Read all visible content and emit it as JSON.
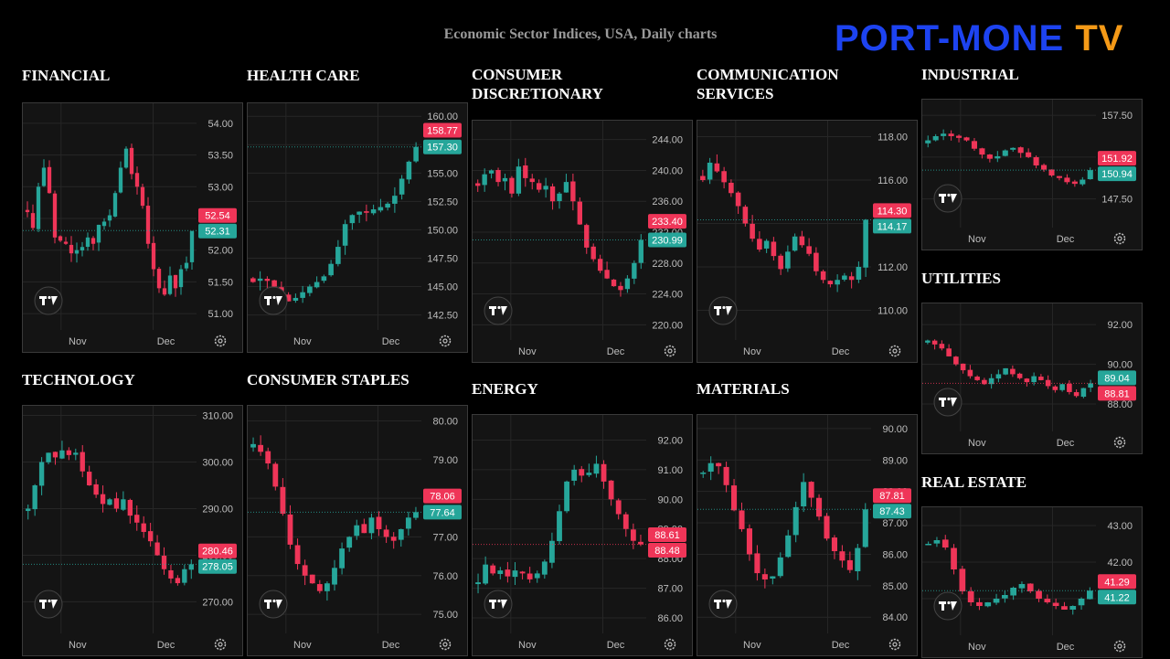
{
  "header": {
    "title": "Economic Sector Indices, USA, Daily charts",
    "logo": {
      "part1": "PORT-MONE",
      "part2": " TV"
    }
  },
  "colors": {
    "up": "#26a69a",
    "down": "#ef3558",
    "background": "#000000",
    "panel": "#141414",
    "grid": "#262626"
  },
  "icons": {
    "brand": "tradingview-logo-icon",
    "settings": "settings-gear-icon"
  },
  "chart_data": [
    {
      "id": "financial",
      "title": "FINANCIAL",
      "type": "candlestick",
      "ylim": [
        50.8,
        54.2
      ],
      "y_ticks": [
        "54.00",
        "53.50",
        "53.00",
        "52.50",
        "52.00",
        "51.50",
        "51.00"
      ],
      "x_ticks": [
        "Nov",
        "Dec"
      ],
      "last_price": 52.31,
      "badges": [
        {
          "text": "52.54",
          "value": 52.54,
          "color": "#ef3558"
        },
        {
          "text": "52.31",
          "value": 52.31,
          "color": "#26a69a"
        }
      ],
      "closes": [
        52.6,
        52.35,
        53.0,
        53.3,
        52.9,
        52.2,
        52.15,
        52.1,
        51.95,
        52.0,
        52.05,
        52.2,
        52.1,
        52.4,
        52.45,
        52.55,
        52.9,
        53.3,
        53.6,
        53.2,
        53.0,
        52.7,
        52.1,
        51.7,
        51.4,
        51.3,
        51.6,
        51.4,
        51.7,
        51.8,
        52.3
      ]
    },
    {
      "id": "health-care",
      "title": "HEALTH CARE",
      "type": "candlestick",
      "ylim": [
        141.5,
        160.5
      ],
      "y_ticks": [
        "160.00",
        "157.50",
        "155.00",
        "152.50",
        "150.00",
        "147.50",
        "145.00",
        "142.50"
      ],
      "x_ticks": [
        "Nov",
        "Dec"
      ],
      "last_price": 157.3,
      "badges": [
        {
          "text": "158.77",
          "value": 158.77,
          "color": "#ef3558"
        },
        {
          "text": "157.30",
          "value": 157.3,
          "color": "#26a69a"
        }
      ],
      "closes": [
        145.4,
        145.7,
        145.5,
        145.0,
        144.3,
        143.7,
        144.0,
        144.5,
        145.0,
        145.4,
        145.9,
        147.0,
        148.5,
        150.5,
        151.3,
        151.6,
        151.5,
        151.8,
        152.0,
        152.3,
        153.0,
        154.5,
        156.0,
        157.3
      ]
    },
    {
      "id": "consumer-discretionary",
      "title": "CONSUMER\nDISCRETIONARY",
      "type": "candlestick",
      "ylim": [
        218.5,
        245.5
      ],
      "y_ticks": [
        "244.00",
        "240.00",
        "236.00",
        "232.00",
        "228.00",
        "224.00",
        "220.00"
      ],
      "x_ticks": [
        "Nov",
        "Dec"
      ],
      "last_price": 230.99,
      "badges": [
        {
          "text": "233.40",
          "value": 233.4,
          "color": "#ef3558"
        },
        {
          "text": "230.99",
          "value": 230.99,
          "color": "#26a69a"
        }
      ],
      "closes": [
        238.0,
        239.5,
        240.0,
        238.5,
        239.0,
        237.0,
        240.5,
        239.0,
        238.5,
        237.5,
        238.0,
        236.0,
        237.0,
        238.5,
        236.0,
        233.0,
        230.0,
        228.5,
        227.0,
        226.0,
        225.0,
        224.5,
        226.0,
        228.0,
        230.99
      ]
    },
    {
      "id": "communication-services",
      "title": "COMMUNICATION\nSERVICES",
      "type": "candlestick",
      "ylim": [
        108.8,
        118.4
      ],
      "y_ticks": [
        "118.00",
        "116.00",
        "114.00",
        "112.00",
        "110.00"
      ],
      "x_ticks": [
        "Nov",
        "Dec"
      ],
      "last_price": 114.17,
      "badges": [
        {
          "text": "114.30",
          "value": 114.3,
          "color": "#ef3558"
        },
        {
          "text": "114.17",
          "value": 114.17,
          "color": "#26a69a"
        }
      ],
      "closes": [
        116.0,
        116.8,
        116.4,
        115.9,
        115.4,
        114.8,
        114.0,
        113.3,
        112.8,
        113.2,
        112.5,
        111.9,
        112.7,
        113.4,
        113.0,
        112.6,
        111.8,
        111.4,
        111.2,
        111.4,
        111.6,
        111.4,
        112.0,
        114.17
      ]
    },
    {
      "id": "industrial",
      "title": "INDUSTRIAL",
      "type": "candlestick",
      "ylim": [
        144.5,
        158.5
      ],
      "y_ticks": [
        "157.50",
        "152.50",
        "147.50"
      ],
      "x_ticks": [
        "Nov",
        "Dec"
      ],
      "last_price": 150.94,
      "badges": [
        {
          "text": "151.92",
          "value": 151.92,
          "color": "#ef3558"
        },
        {
          "text": "150.94",
          "value": 150.94,
          "color": "#26a69a"
        }
      ],
      "closes": [
        154.5,
        155.0,
        155.3,
        155.0,
        154.8,
        154.5,
        153.5,
        152.8,
        152.3,
        152.6,
        153.3,
        153.6,
        153.0,
        152.5,
        151.5,
        151.0,
        150.3,
        150.0,
        149.5,
        149.3,
        149.8,
        150.94
      ]
    },
    {
      "id": "utilities",
      "title": "UTILITIES",
      "type": "candlestick",
      "ylim": [
        86.8,
        92.7
      ],
      "y_ticks": [
        "92.00",
        "90.00",
        "88.00"
      ],
      "x_ticks": [
        "Nov",
        "Dec"
      ],
      "last_price": 89.04,
      "badges": [
        {
          "text": "89.04",
          "value": 89.04,
          "color": "#26a69a"
        },
        {
          "text": "88.81",
          "value": 88.81,
          "color": "#ef3558"
        }
      ],
      "closes": [
        91.2,
        91.0,
        90.8,
        90.4,
        90.0,
        89.7,
        89.4,
        89.2,
        89.0,
        89.3,
        89.5,
        89.8,
        89.5,
        89.3,
        89.1,
        89.4,
        89.2,
        88.9,
        88.7,
        89.0,
        88.6,
        88.4,
        88.8,
        89.04
      ]
    },
    {
      "id": "technology",
      "title": "TECHNOLOGY",
      "type": "candlestick",
      "ylim": [
        264,
        310.5
      ],
      "y_ticks": [
        "310.00",
        "300.00",
        "290.00",
        "280.00",
        "270.00"
      ],
      "x_ticks": [
        "Nov",
        "Dec"
      ],
      "last_price": 278.05,
      "badges": [
        {
          "text": "280.46",
          "value": 280.46,
          "color": "#ef3558"
        },
        {
          "text": "278.05",
          "value": 278.05,
          "color": "#26a69a"
        }
      ],
      "closes": [
        290.0,
        295.0,
        300.0,
        302.0,
        301.0,
        302.5,
        301.5,
        302.0,
        298.0,
        295.0,
        293.0,
        291.0,
        292.0,
        290.0,
        292.0,
        288.5,
        287.0,
        285.0,
        283.0,
        280.0,
        277.0,
        275.0,
        274.0,
        277.0,
        278.05
      ]
    },
    {
      "id": "consumer-staples",
      "title": "CONSUMER STAPLES",
      "type": "candlestick",
      "ylim": [
        74.6,
        80.2
      ],
      "y_ticks": [
        "80.00",
        "79.00",
        "78.00",
        "77.00",
        "76.00",
        "75.00"
      ],
      "x_ticks": [
        "Nov",
        "Dec"
      ],
      "last_price": 77.64,
      "badges": [
        {
          "text": "78.06",
          "value": 78.06,
          "color": "#ef3558"
        },
        {
          "text": "77.64",
          "value": 77.64,
          "color": "#26a69a"
        }
      ],
      "closes": [
        79.4,
        79.2,
        78.9,
        78.3,
        77.6,
        76.8,
        76.3,
        76.0,
        75.8,
        75.6,
        75.8,
        76.2,
        76.7,
        77.0,
        77.3,
        77.1,
        77.5,
        77.2,
        77.0,
        76.9,
        77.2,
        77.5,
        77.64
      ]
    },
    {
      "id": "energy",
      "title": "ENERGY",
      "type": "candlestick",
      "ylim": [
        85.6,
        92.6
      ],
      "y_ticks": [
        "92.00",
        "91.00",
        "90.00",
        "89.00",
        "88.00",
        "87.00",
        "86.00"
      ],
      "x_ticks": [
        "Nov",
        "Dec"
      ],
      "last_price": 88.48,
      "badges": [
        {
          "text": "88.61",
          "value": 88.61,
          "color": "#ef3558"
        },
        {
          "text": "88.48",
          "value": 88.48,
          "color": "#ef3558"
        }
      ],
      "closes": [
        87.2,
        87.8,
        87.5,
        87.6,
        87.4,
        87.6,
        87.5,
        87.3,
        87.5,
        87.9,
        88.6,
        89.6,
        90.6,
        91.0,
        90.8,
        90.9,
        91.2,
        90.6,
        90.0,
        89.5,
        89.0,
        88.6,
        88.48
      ]
    },
    {
      "id": "materials",
      "title": "MATERIALS",
      "type": "candlestick",
      "ylim": [
        83.6,
        90.2
      ],
      "y_ticks": [
        "90.00",
        "89.00",
        "88.00",
        "87.00",
        "86.00",
        "85.00",
        "84.00"
      ],
      "x_ticks": [
        "Nov",
        "Dec"
      ],
      "last_price": 87.43,
      "badges": [
        {
          "text": "87.81",
          "value": 87.81,
          "color": "#ef3558"
        },
        {
          "text": "87.43",
          "value": 87.43,
          "color": "#26a69a"
        }
      ],
      "closes": [
        88.6,
        88.9,
        88.8,
        88.2,
        87.4,
        86.8,
        86.0,
        85.4,
        85.2,
        85.3,
        85.9,
        86.6,
        87.5,
        88.3,
        87.8,
        87.2,
        86.5,
        86.1,
        85.8,
        85.5,
        86.2,
        87.43
      ]
    },
    {
      "id": "real-estate",
      "title": "REAL ESTATE",
      "type": "candlestick",
      "ylim": [
        40.1,
        43.3
      ],
      "y_ticks": [
        "43.00",
        "42.00",
        "41.00"
      ],
      "x_ticks": [
        "Nov",
        "Dec"
      ],
      "last_price": 41.22,
      "badges": [
        {
          "text": "41.29",
          "value": 41.29,
          "color": "#ef3558"
        },
        {
          "text": "41.22",
          "value": 41.22,
          "color": "#26a69a"
        }
      ],
      "closes": [
        42.5,
        42.6,
        42.4,
        41.8,
        41.2,
        40.9,
        40.8,
        40.9,
        41.0,
        41.1,
        41.3,
        41.4,
        41.2,
        41.0,
        40.9,
        40.8,
        40.7,
        40.8,
        41.0,
        41.22
      ]
    }
  ]
}
